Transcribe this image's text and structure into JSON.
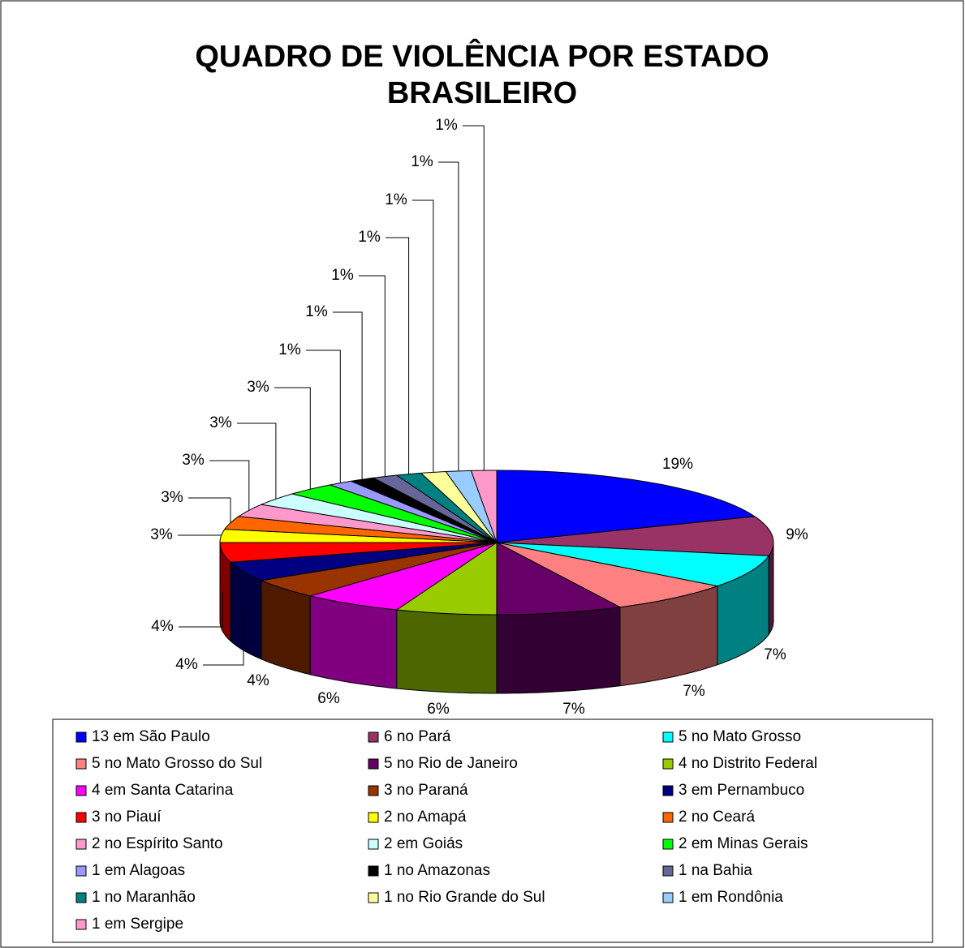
{
  "chart_data": {
    "type": "pie3d",
    "title": [
      "QUADRO DE VIOLÊNCIA POR ESTADO",
      "BRASILEIRO"
    ],
    "categories": [
      "13 em São Paulo",
      "6 no Pará",
      "5 no Mato Grosso",
      "5 no Mato Grosso do Sul",
      "5 no Rio de Janeiro",
      "4 no Distrito Federal",
      "4 em Santa Catarina",
      "3 no Paraná",
      "3 em Pernambuco",
      "3 no Piauí",
      "2 no Amapá",
      "2 no Ceará",
      "2 no Espírito Santo",
      "2 em Goiás",
      "2 em Minas Gerais",
      "1 em Alagoas",
      "1 no Amazonas",
      "1 na Bahia",
      "1 no Maranhão",
      "1 no Rio Grande do Sul",
      "1 em Rondônia",
      "1 em Sergipe"
    ],
    "values": [
      19.12,
      8.82,
      7.35,
      7.35,
      7.35,
      5.88,
      5.88,
      4.41,
      4.41,
      4.41,
      2.94,
      2.94,
      2.94,
      2.94,
      2.94,
      1.47,
      1.47,
      1.47,
      1.47,
      1.47,
      1.47,
      1.47
    ],
    "value_labels": [
      "19%",
      "9%",
      "7%",
      "7%",
      "7%",
      "6%",
      "6%",
      "4%",
      "4%",
      "4%",
      "3%",
      "3%",
      "3%",
      "3%",
      "3%",
      "1%",
      "1%",
      "1%",
      "1%",
      "1%",
      "1%",
      "1%"
    ],
    "colors": [
      "#0000FF",
      "#993366",
      "#00FFFF",
      "#FF8080",
      "#660066",
      "#99CC00",
      "#FF00FF",
      "#993300",
      "#000080",
      "#FF0000",
      "#FFFF00",
      "#FF6600",
      "#FF99CC",
      "#CCFFFF",
      "#00FF00",
      "#9999FF",
      "#000000",
      "#666699",
      "#008080",
      "#FFFF99",
      "#99CCFF",
      "#FF99CC"
    ],
    "legend": "bottom"
  }
}
